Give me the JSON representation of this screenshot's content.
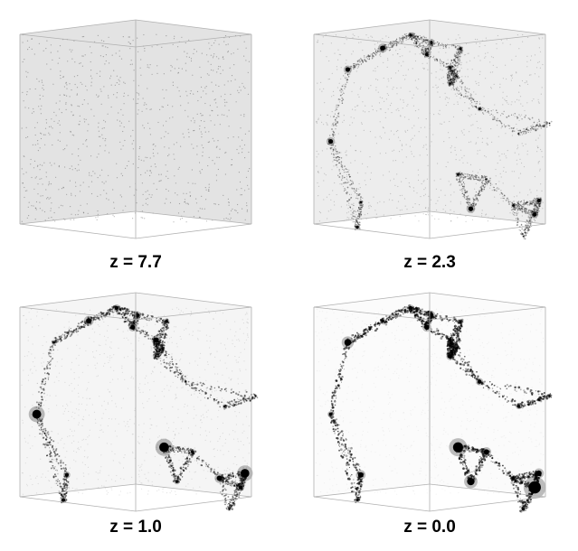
{
  "panels": [
    {
      "label": "z = 7.7",
      "clustering": 0.05
    },
    {
      "label": "z = 2.3",
      "clustering": 0.45
    },
    {
      "label": "z = 1.0",
      "clustering": 0.75
    },
    {
      "label": "z = 0.0",
      "clustering": 1.0
    }
  ],
  "colors": {
    "background": "#ffffff",
    "edge": "#b0b0b0",
    "matter": "#000000",
    "label": "#000000"
  }
}
